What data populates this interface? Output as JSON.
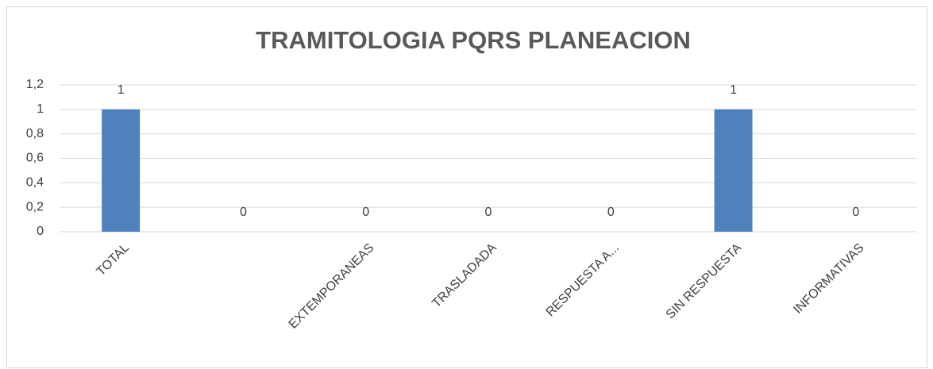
{
  "chart_data": {
    "type": "bar",
    "title": "TRAMITOLOGIA PQRS PLANEACION",
    "categories": [
      "TOTAL",
      null,
      "EXTEMPORANEAS",
      "TRASLADADA",
      "RESPUESTA A...",
      "SIN RESPUESTA",
      "INFORMATIVAS"
    ],
    "values": [
      1,
      0,
      0,
      0,
      0,
      1,
      0
    ],
    "color": "#4f81bd",
    "ylim": [
      0,
      1.2
    ],
    "yticks": [
      0,
      {
        "value": 0.2,
        "label": "0,2"
      },
      {
        "value": 0.4,
        "label": "0,4"
      },
      {
        "value": 0.6,
        "label": "0,6"
      },
      {
        "value": 0.8,
        "label": "0,8"
      },
      1,
      {
        "value": 1.2,
        "label": "1,2"
      }
    ],
    "grid": true
  }
}
